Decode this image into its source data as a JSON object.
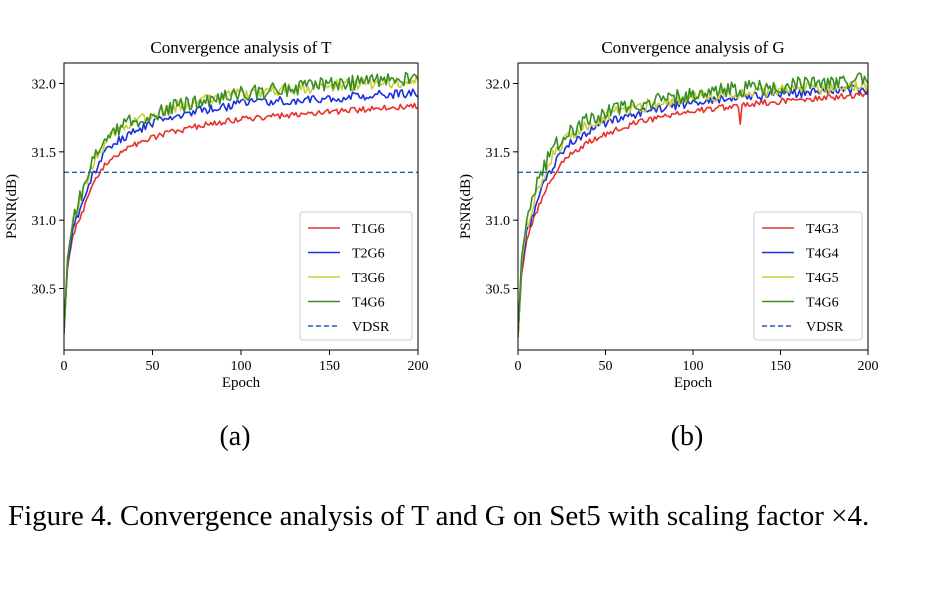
{
  "chart_data": [
    {
      "id": "a",
      "type": "line",
      "title": "Convergence analysis of T",
      "xlabel": "Epoch",
      "ylabel": "PSNR(dB)",
      "xlim": [
        0,
        200
      ],
      "ylim": [
        30.05,
        32.15
      ],
      "xticks": [
        0,
        50,
        100,
        150,
        200
      ],
      "yticks": [
        30.5,
        31.0,
        31.5,
        32.0
      ],
      "xtick_labels": [
        "0",
        "50",
        "100",
        "150",
        "200"
      ],
      "ytick_labels": [
        "30.5",
        "31.0",
        "31.5",
        "32.0"
      ],
      "legend_position": "lower-right",
      "panel_label": "(a)",
      "reference_line": {
        "name": "VDSR",
        "value": 31.35,
        "color": "#1f5fbf",
        "style": "dashed"
      },
      "series": [
        {
          "name": "T1G6",
          "color": "#e8312a",
          "x": [
            0,
            2,
            5,
            10,
            15,
            20,
            25,
            30,
            40,
            50,
            60,
            70,
            80,
            90,
            100,
            120,
            140,
            160,
            180,
            200
          ],
          "values": [
            30.18,
            30.65,
            30.88,
            31.05,
            31.22,
            31.35,
            31.43,
            31.48,
            31.55,
            31.6,
            31.64,
            31.67,
            31.7,
            31.72,
            31.74,
            31.76,
            31.78,
            31.8,
            31.82,
            31.84
          ]
        },
        {
          "name": "T2G6",
          "color": "#1a2ee0",
          "x": [
            0,
            2,
            5,
            10,
            15,
            20,
            25,
            30,
            40,
            50,
            60,
            70,
            80,
            90,
            100,
            120,
            140,
            160,
            180,
            200
          ],
          "values": [
            30.18,
            30.68,
            30.93,
            31.12,
            31.3,
            31.43,
            31.52,
            31.58,
            31.65,
            31.71,
            31.75,
            31.79,
            31.81,
            31.83,
            31.85,
            31.87,
            31.89,
            31.9,
            31.92,
            31.93
          ]
        },
        {
          "name": "T3G6",
          "color": "#c9cf3a",
          "x": [
            0,
            2,
            5,
            10,
            15,
            20,
            25,
            30,
            40,
            50,
            60,
            70,
            80,
            90,
            100,
            120,
            140,
            160,
            180,
            200
          ],
          "values": [
            30.18,
            30.72,
            30.98,
            31.18,
            31.37,
            31.5,
            31.59,
            31.65,
            31.72,
            31.78,
            31.82,
            31.85,
            31.88,
            31.9,
            31.92,
            31.95,
            31.97,
            31.99,
            32.01,
            32.02
          ]
        },
        {
          "name": "T4G6",
          "color": "#3a8d23",
          "x": [
            0,
            2,
            5,
            10,
            15,
            20,
            25,
            30,
            40,
            50,
            60,
            70,
            80,
            90,
            100,
            120,
            140,
            160,
            180,
            200
          ],
          "values": [
            30.18,
            30.72,
            30.98,
            31.2,
            31.4,
            31.53,
            31.61,
            31.67,
            31.73,
            31.78,
            31.82,
            31.85,
            31.88,
            31.9,
            31.92,
            31.95,
            31.98,
            32.0,
            32.02,
            32.04
          ]
        }
      ]
    },
    {
      "id": "b",
      "type": "line",
      "title": "Convergence analysis of G",
      "xlabel": "Epoch",
      "ylabel": "PSNR(dB)",
      "xlim": [
        0,
        200
      ],
      "ylim": [
        30.05,
        32.15
      ],
      "xticks": [
        0,
        50,
        100,
        150,
        200
      ],
      "yticks": [
        30.5,
        31.0,
        31.5,
        32.0
      ],
      "xtick_labels": [
        "0",
        "50",
        "100",
        "150",
        "200"
      ],
      "ytick_labels": [
        "30.5",
        "31.0",
        "31.5",
        "32.0"
      ],
      "legend_position": "lower-right",
      "panel_label": "(b)",
      "reference_line": {
        "name": "VDSR",
        "value": 31.35,
        "color": "#1f5fbf",
        "style": "dashed"
      },
      "series": [
        {
          "name": "T4G3",
          "color": "#e8312a",
          "x": [
            0,
            2,
            5,
            10,
            15,
            20,
            25,
            30,
            40,
            50,
            60,
            70,
            80,
            90,
            100,
            120,
            140,
            160,
            180,
            200
          ],
          "values": [
            30.15,
            30.6,
            30.85,
            31.05,
            31.2,
            31.32,
            31.41,
            31.48,
            31.57,
            31.63,
            31.68,
            31.72,
            31.75,
            31.78,
            31.8,
            31.83,
            31.86,
            31.88,
            31.9,
            31.92
          ]
        },
        {
          "name": "T4G4",
          "color": "#1a2ee0",
          "x": [
            0,
            2,
            5,
            10,
            15,
            20,
            25,
            30,
            40,
            50,
            60,
            70,
            80,
            90,
            100,
            120,
            140,
            160,
            180,
            200
          ],
          "values": [
            30.15,
            30.65,
            30.9,
            31.1,
            31.27,
            31.4,
            31.49,
            31.56,
            31.65,
            31.71,
            31.75,
            31.79,
            31.82,
            31.84,
            31.86,
            31.89,
            31.91,
            31.93,
            31.95,
            31.96
          ]
        },
        {
          "name": "T4G5",
          "color": "#c9cf3a",
          "x": [
            0,
            2,
            5,
            10,
            15,
            20,
            25,
            30,
            40,
            50,
            60,
            70,
            80,
            90,
            100,
            120,
            140,
            160,
            180,
            200
          ],
          "values": [
            30.15,
            30.68,
            30.95,
            31.16,
            31.34,
            31.47,
            31.56,
            31.62,
            31.7,
            31.76,
            31.8,
            31.83,
            31.86,
            31.88,
            31.9,
            31.92,
            31.94,
            31.96,
            31.97,
            31.98
          ]
        },
        {
          "name": "T4G6",
          "color": "#3a8d23",
          "x": [
            0,
            2,
            5,
            10,
            15,
            20,
            25,
            30,
            40,
            50,
            60,
            70,
            80,
            90,
            100,
            120,
            140,
            160,
            180,
            200
          ],
          "values": [
            30.15,
            30.72,
            31.0,
            31.22,
            31.4,
            31.52,
            31.6,
            31.66,
            31.73,
            31.78,
            31.82,
            31.85,
            31.88,
            31.9,
            31.92,
            31.95,
            31.97,
            31.99,
            32.01,
            32.03
          ]
        }
      ]
    }
  ],
  "caption": "Figure 4. Convergence analysis of T and G on Set5 with scaling factor ×4."
}
